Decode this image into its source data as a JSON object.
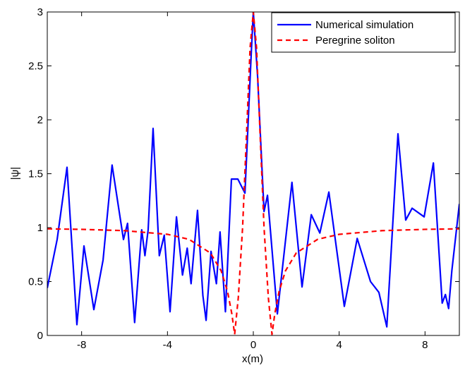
{
  "chart_data": {
    "type": "line",
    "xlabel": "x(m)",
    "ylabel": "|ψ|",
    "xlim": [
      -9.6,
      9.6
    ],
    "ylim": [
      0,
      3
    ],
    "xticks": [
      -8,
      -4,
      0,
      4,
      8
    ],
    "yticks": [
      0,
      0.5,
      1,
      1.5,
      2,
      2.5,
      3
    ],
    "grid": false,
    "legend": "upper right",
    "series": [
      {
        "name": "Numerical simulation",
        "color": "#0000ff",
        "dash": false,
        "x": [
          -9.6,
          -9.14,
          -8.68,
          -8.22,
          -7.89,
          -7.43,
          -7.0,
          -6.58,
          -6.05,
          -5.86,
          -5.53,
          -5.2,
          -5.05,
          -4.9,
          -4.67,
          -4.38,
          -4.15,
          -3.88,
          -3.58,
          -3.3,
          -3.08,
          -2.9,
          -2.6,
          -2.35,
          -2.2,
          -1.97,
          -1.72,
          -1.55,
          -1.3,
          -1.02,
          -0.72,
          -0.39,
          -0.1,
          0,
          0.2,
          0.5,
          0.66,
          1.12,
          1.8,
          2.27,
          2.7,
          3.1,
          3.52,
          4.24,
          4.84,
          5.46,
          5.85,
          6.22,
          6.74,
          7.1,
          7.4,
          7.96,
          8.39,
          8.8,
          8.95,
          9.1,
          9.25,
          9.6
        ],
        "values": [
          0.44,
          0.89,
          1.56,
          0.1,
          0.83,
          0.24,
          0.7,
          1.58,
          0.89,
          1.04,
          0.12,
          0.98,
          0.74,
          0.98,
          1.92,
          0.74,
          0.93,
          0.22,
          1.1,
          0.56,
          0.81,
          0.48,
          1.16,
          0.37,
          0.14,
          0.78,
          0.48,
          0.96,
          0.22,
          1.45,
          1.45,
          1.32,
          2.6,
          3.0,
          2.4,
          1.15,
          1.3,
          0.2,
          1.42,
          0.45,
          1.12,
          0.95,
          1.33,
          0.27,
          0.9,
          0.5,
          0.4,
          0.08,
          1.87,
          1.07,
          1.18,
          1.1,
          1.6,
          0.3,
          0.38,
          0.25,
          0.6,
          1.22
        ]
      },
      {
        "name": "Peregrine soliton",
        "color": "#ff0000",
        "dash": true,
        "x": [
          -9.6,
          -8,
          -6,
          -4,
          -3,
          -2,
          -1.5,
          -1.2,
          -1,
          -0.87,
          -0.7,
          -0.5,
          -0.3,
          -0.15,
          0,
          0.15,
          0.3,
          0.5,
          0.7,
          0.87,
          1,
          1.2,
          1.5,
          2,
          3,
          4,
          6,
          8,
          9.6
        ],
        "values": [
          0.989,
          0.984,
          0.972,
          0.938,
          0.892,
          0.765,
          0.6,
          0.408,
          0.2,
          0.01,
          0.351,
          1,
          1.94,
          2.67,
          3,
          2.67,
          1.94,
          1,
          0.351,
          0.01,
          0.2,
          0.408,
          0.6,
          0.765,
          0.892,
          0.938,
          0.972,
          0.984,
          0.989
        ]
      }
    ]
  }
}
